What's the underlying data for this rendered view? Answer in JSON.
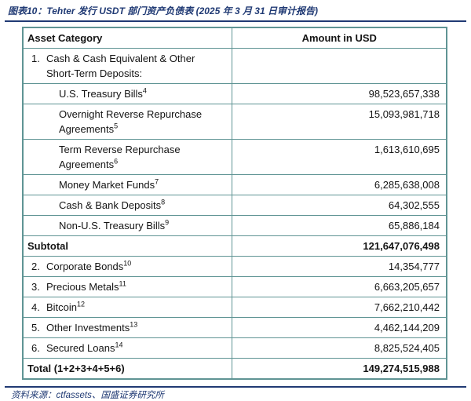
{
  "figure": {
    "title": "图表10：Tehter 发行 USDT 部门资产负债表 (2025 年 3 月 31 日审计报告)"
  },
  "colors": {
    "accent_navy": "#203a74",
    "table_border": "#5f9494",
    "text": "#141414",
    "background": "#ffffff"
  },
  "table": {
    "headers": [
      "Asset Category",
      "Amount in USD"
    ],
    "rows": [
      {
        "num": "1.",
        "label": "Cash & Cash Equivalent & Other Short-Term Deposits:",
        "amount": ""
      },
      {
        "label": "U.S. Treasury Bills",
        "sup": "4",
        "amount": "98,523,657,338"
      },
      {
        "label": "Overnight Reverse Repurchase Agreements",
        "sup": "5",
        "amount": "15,093,981,718"
      },
      {
        "label": "Term Reverse Repurchase Agreements",
        "sup": "6",
        "amount": "1,613,610,695"
      },
      {
        "label": "Money Market Funds",
        "sup": "7",
        "amount": "6,285,638,008"
      },
      {
        "label": "Cash & Bank Deposits",
        "sup": "8",
        "amount": "64,302,555"
      },
      {
        "label": "Non-U.S. Treasury Bills",
        "sup": "9",
        "amount": "65,886,184"
      },
      {
        "label": "Subtotal",
        "amount": "121,647,076,498"
      },
      {
        "num": "2.",
        "label": "Corporate Bonds",
        "sup": "10",
        "amount": "14,354,777"
      },
      {
        "num": "3.",
        "label": "Precious Metals",
        "sup": "11",
        "amount": "6,663,205,657"
      },
      {
        "num": "4.",
        "label": "Bitcoin",
        "sup": "12",
        "amount": "7,662,210,442"
      },
      {
        "num": "5.",
        "label": "Other Investments",
        "sup": "13",
        "amount": "4,462,144,209"
      },
      {
        "num": "6.",
        "label": "Secured Loans",
        "sup": "14",
        "amount": "8,825,524,405"
      },
      {
        "label": "Total (1+2+3+4+5+6)",
        "amount": "149,274,515,988"
      }
    ]
  },
  "source": {
    "text": "资料来源：ctfassets、国盛证券研究所"
  }
}
